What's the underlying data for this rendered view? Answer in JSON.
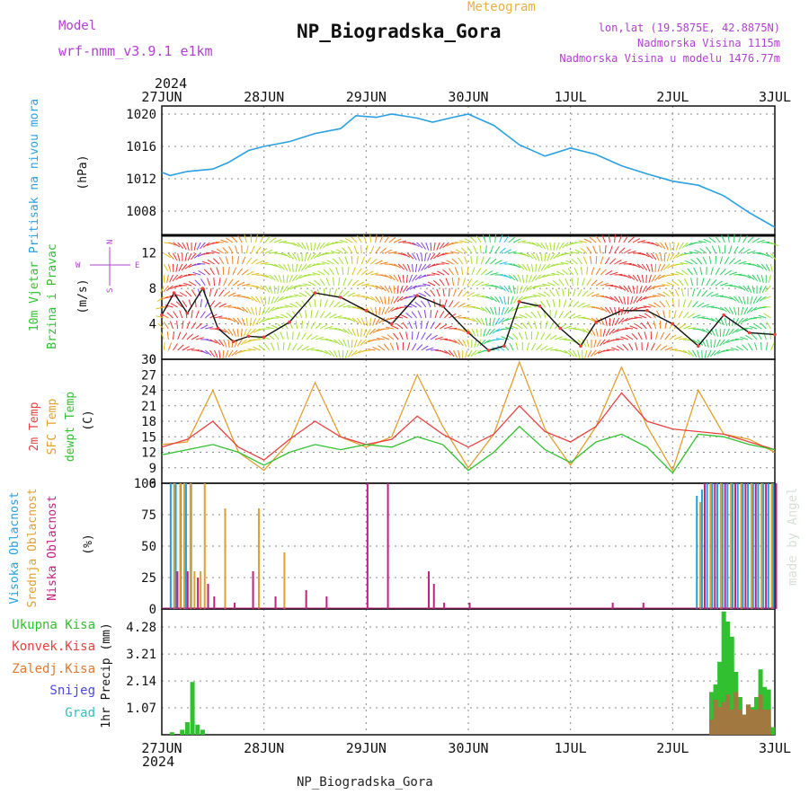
{
  "header": {
    "model_label": "Model",
    "model_value": "wrf-nmm_v3.9.1 e1km",
    "product": "Meteogram",
    "station": "NP_Biogradska_Gora",
    "lonlat": "lon,lat (19.5875E, 42.8875N)",
    "elevation": "Nadmorska Visina 1115m",
    "model_elevation": "Nadmorska Visina u modelu 1476.77m",
    "watermark": "made by Angel",
    "footer": "NP_Biogradska_Gora"
  },
  "time_axis": {
    "year": "2024",
    "day_labels": [
      "27JUN",
      "28JUN",
      "29JUN",
      "30JUN",
      "1JUL",
      "2JUL",
      "3JUL"
    ]
  },
  "panel_labels": {
    "pressure": [
      "Pritisak na nivou mora"
    ],
    "pressure_unit": "(hPa)",
    "wind": [
      "10m Vjetar",
      "Brzina i Pravac"
    ],
    "wind_unit": "(m/s)",
    "compass": [
      "N",
      "W",
      "E",
      "S"
    ],
    "temperature": [
      "2m Temp",
      "SFC Temp",
      "dewpt Temp"
    ],
    "temperature_unit": "(C)",
    "cloud": [
      "Visoka Oblacnost",
      "Srednja Oblacnost",
      "Niska Oblacnost"
    ],
    "cloud_unit": "(%)",
    "precip_legend": [
      "Ukupna Kisa",
      "Konvek.Kisa",
      "Zaledj.Kisa",
      "Snijeg",
      "Grad"
    ],
    "precip_unit": "1hr Precip (mm)"
  },
  "colors": {
    "pressure": "#2aa0e0",
    "t2m": "#e84040",
    "tsfc": "#e0a030",
    "dewpt": "#30c030",
    "cloud_high": "#20a0e0",
    "cloud_mid": "#e0a030",
    "cloud_low": "#c02080",
    "precip_total": "#30c030",
    "precip_conv": "#e84040",
    "precip_frz": "#e07830",
    "precip_snow": "#4848e0",
    "precip_hail": "#30c0c0",
    "header_purple": "#b040d0",
    "header_orange": "#e8b040"
  },
  "chart_data": [
    {
      "type": "line",
      "panel": "pressure",
      "ylim": [
        1005,
        1021
      ],
      "yticks": [
        1008,
        1012,
        1016,
        1020
      ],
      "xlim_days": [
        0,
        6
      ],
      "series": [
        {
          "x": [
            0,
            0.08,
            0.25,
            0.5,
            0.65,
            0.85,
            1.0,
            1.25,
            1.5,
            1.75,
            1.9,
            2.1,
            2.25,
            2.5,
            2.65,
            2.85,
            3.0,
            3.25,
            3.5,
            3.75,
            4.0,
            4.25,
            4.5,
            4.75,
            5.0,
            5.25,
            5.5,
            5.75,
            6.0
          ],
          "y": [
            1012.8,
            1012.4,
            1012.9,
            1013.2,
            1014.0,
            1015.5,
            1016.0,
            1016.6,
            1017.6,
            1018.2,
            1019.8,
            1019.6,
            1020.0,
            1019.5,
            1019.0,
            1019.6,
            1020.0,
            1018.6,
            1016.2,
            1014.8,
            1015.8,
            1015.0,
            1013.6,
            1012.6,
            1011.7,
            1011.2,
            1009.9,
            1007.8,
            1006.0
          ]
        }
      ]
    },
    {
      "type": "line",
      "panel": "wind",
      "ylim": [
        0,
        14
      ],
      "yticks": [
        0,
        4,
        8,
        12
      ],
      "series": [
        {
          "x": [
            0,
            0.12,
            0.25,
            0.4,
            0.55,
            0.7,
            0.85,
            1.0,
            1.25,
            1.5,
            1.75,
            2.0,
            2.25,
            2.5,
            2.75,
            3.0,
            3.2,
            3.35,
            3.5,
            3.7,
            3.9,
            4.1,
            4.25,
            4.5,
            4.75,
            5.0,
            5.25,
            5.5,
            5.75,
            6.0
          ],
          "y": [
            5.0,
            7.5,
            5.2,
            8.0,
            3.5,
            2.0,
            2.6,
            2.5,
            4.2,
            7.5,
            7.0,
            5.5,
            4.0,
            7.2,
            6.0,
            3.0,
            1.0,
            1.5,
            6.5,
            6.0,
            3.5,
            1.5,
            4.2,
            5.5,
            5.5,
            4.0,
            1.5,
            5.0,
            3.0,
            2.8
          ]
        }
      ]
    },
    {
      "type": "line",
      "panel": "temperature",
      "ylim": [
        6,
        30
      ],
      "yticks": [
        6,
        9,
        12,
        15,
        18,
        21,
        24,
        27,
        30
      ],
      "series": [
        {
          "name": "2m Temp",
          "x": [
            0,
            0.25,
            0.5,
            0.75,
            1.0,
            1.25,
            1.5,
            1.75,
            2.0,
            2.25,
            2.5,
            2.75,
            3.0,
            3.25,
            3.5,
            3.75,
            4.0,
            4.25,
            4.5,
            4.75,
            5.0,
            5.25,
            5.5,
            5.75,
            6.0
          ],
          "y": [
            13.0,
            14.5,
            18.0,
            13.0,
            10.5,
            14.5,
            18.0,
            15.0,
            13.5,
            14.5,
            19.0,
            15.5,
            13.0,
            15.5,
            21.0,
            16.0,
            14.0,
            17.0,
            23.5,
            18.0,
            16.5,
            16.0,
            15.5,
            14.0,
            12.5
          ]
        },
        {
          "name": "SFC Temp",
          "x": [
            0,
            0.25,
            0.5,
            0.75,
            1.0,
            1.25,
            1.5,
            1.75,
            2.0,
            2.25,
            2.5,
            2.75,
            3.0,
            3.25,
            3.5,
            3.75,
            4.0,
            4.25,
            4.5,
            4.75,
            5.0,
            5.25,
            5.5,
            5.75,
            6.0
          ],
          "y": [
            13.5,
            14.0,
            24.0,
            12.0,
            8.5,
            14.0,
            25.5,
            15.0,
            13.0,
            15.0,
            27.0,
            17.0,
            9.0,
            15.5,
            29.5,
            16.5,
            9.5,
            17.0,
            28.5,
            17.0,
            8.5,
            24.0,
            15.5,
            14.5,
            12.0
          ]
        },
        {
          "name": "dewpt Temp",
          "x": [
            0,
            0.25,
            0.5,
            0.75,
            1.0,
            1.25,
            1.5,
            1.75,
            2.0,
            2.25,
            2.5,
            2.75,
            3.0,
            3.25,
            3.5,
            3.75,
            4.0,
            4.25,
            4.5,
            4.75,
            5.0,
            5.25,
            5.5,
            5.75,
            6.0
          ],
          "y": [
            11.5,
            12.5,
            13.5,
            12.0,
            9.5,
            12.0,
            13.5,
            12.5,
            13.5,
            13.0,
            15.0,
            13.5,
            8.5,
            12.0,
            17.0,
            12.5,
            10.0,
            14.0,
            15.5,
            13.0,
            8.0,
            15.5,
            15.0,
            13.5,
            12.5
          ]
        }
      ]
    },
    {
      "type": "bar",
      "panel": "cloud",
      "ylim": [
        0,
        100
      ],
      "yticks": [
        0,
        25,
        50,
        75,
        100
      ],
      "series": [
        {
          "name": "Visoka Oblacnost",
          "x": [
            0.1,
            0.15,
            0.2,
            0.25,
            0.3,
            5.25,
            5.3,
            5.35,
            5.4,
            5.45,
            5.5,
            5.55,
            5.6,
            5.65,
            5.7,
            5.75,
            5.8,
            5.85,
            5.9,
            5.95,
            6.0
          ],
          "values": [
            100,
            100,
            100,
            100,
            100,
            90,
            95,
            100,
            100,
            100,
            100,
            100,
            100,
            100,
            100,
            100,
            100,
            100,
            100,
            100,
            100
          ]
        },
        {
          "name": "Srednja Oblacnost",
          "x": [
            0.12,
            0.18,
            0.22,
            0.28,
            0.32,
            0.38,
            0.42,
            0.62,
            0.95,
            1.2,
            5.27,
            5.37,
            5.47,
            5.57,
            5.67,
            5.77,
            5.87,
            5.97
          ],
          "values": [
            100,
            100,
            100,
            100,
            30,
            30,
            100,
            80,
            80,
            45,
            85,
            100,
            100,
            100,
            100,
            100,
            100,
            100
          ]
        },
        {
          "name": "Niska Oblacnost",
          "x": [
            0.14,
            0.24,
            0.34,
            0.44,
            0.5,
            0.7,
            0.88,
            1.1,
            1.4,
            1.6,
            2.0,
            2.2,
            2.6,
            2.65,
            2.75,
            3.0,
            4.4,
            4.7,
            5.3,
            5.4,
            5.5,
            5.6,
            5.7,
            5.8,
            5.9,
            6.0
          ],
          "values": [
            30,
            30,
            25,
            20,
            10,
            5,
            30,
            10,
            15,
            10,
            100,
            100,
            30,
            20,
            5,
            5,
            5,
            5,
            100,
            100,
            100,
            100,
            100,
            100,
            100,
            100
          ]
        }
      ]
    },
    {
      "type": "bar",
      "panel": "precip",
      "ylim": [
        0,
        5.0
      ],
      "yticks": [
        1.07,
        2.14,
        3.21,
        4.28
      ],
      "series": [
        {
          "name": "Ukupna Kisa",
          "x": [
            0.1,
            0.2,
            0.25,
            0.3,
            0.35,
            0.4,
            5.38,
            5.42,
            5.46,
            5.5,
            5.54,
            5.58,
            5.62,
            5.66,
            5.7,
            5.74,
            5.78,
            5.82,
            5.86,
            5.9,
            5.94,
            5.98
          ],
          "values": [
            0.1,
            0.2,
            0.5,
            2.1,
            0.4,
            0.2,
            1.7,
            2.0,
            2.9,
            4.9,
            4.5,
            3.9,
            2.5,
            1.5,
            0.8,
            1.2,
            1.1,
            1.5,
            2.6,
            1.9,
            1.8,
            0.3
          ]
        },
        {
          "name": "Konvek.Kisa",
          "x": [
            5.38,
            5.42,
            5.46,
            5.5,
            5.54,
            5.58,
            5.62,
            5.66,
            5.7,
            5.74,
            5.78,
            5.82,
            5.86,
            5.9,
            5.94
          ],
          "values": [
            0.6,
            1.4,
            1.1,
            1.3,
            1.6,
            1.0,
            1.7,
            1.0,
            0.8,
            1.2,
            1.0,
            1.0,
            1.6,
            1.0,
            1.0
          ]
        }
      ]
    }
  ]
}
